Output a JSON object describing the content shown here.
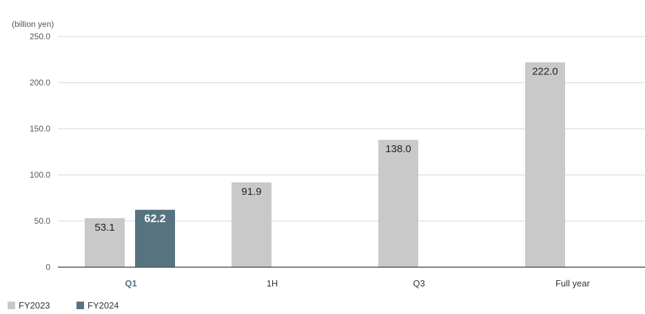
{
  "chart_data": {
    "type": "bar",
    "unit_label": "(billion yen)",
    "categories": [
      "Q1",
      "1H",
      "Q3",
      "Full year"
    ],
    "highlight_category": "Q1",
    "series": [
      {
        "name": "FY2023",
        "color": "#c9c9c9",
        "values": [
          53.1,
          91.9,
          138.0,
          222.0
        ],
        "labels": [
          "53.1",
          "91.9",
          "138.0",
          "222.0"
        ]
      },
      {
        "name": "FY2024",
        "color": "#56737f",
        "values": [
          62.2,
          null,
          null,
          null
        ],
        "labels": [
          "62.2",
          null,
          null,
          null
        ]
      }
    ],
    "yticks": [
      "0",
      "50.0",
      "100.0",
      "150.0",
      "200.0",
      "250.0"
    ],
    "ylim": [
      0,
      250
    ],
    "grid": true,
    "legend_position": "bottom-left"
  }
}
